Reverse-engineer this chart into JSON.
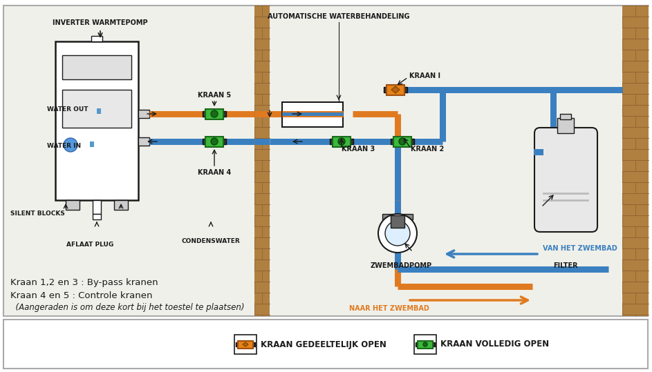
{
  "bg_color": "#f0f0ea",
  "border_color": "#aaaaaa",
  "pipe_orange": "#E07A20",
  "pipe_blue": "#3A80C0",
  "pipe_lw": 6.5,
  "wall_color": "#b08040",
  "wall_dark": "#8B6030",
  "black": "#1a1a1a",
  "labels": {
    "inverter": "INVERTER WARMTEPOMP",
    "water_out": "WATER OUT",
    "water_in": "WATER IN",
    "silent": "SILENT BLOCKS",
    "aflaat": "AFLAAT PLUG",
    "condenswater": "CONDENSWATER",
    "kraan4": "KRAAN 4",
    "kraan5": "KRAAN 5",
    "kraan3": "KRAAN 3",
    "kraan2": "KRAAN 2",
    "kraan1": "KRAAN I",
    "auto_water": "AUTOMATISCHE WATERBEHANDELING",
    "zwembadpomp": "ZWEMBADPOMP",
    "filter": "FILTER",
    "van_zwembad": "VAN HET ZWEMBAD",
    "naar_zwembad": "NAAR HET ZWEMBAD",
    "legend1": "KRAAN GEDEELTELIJK OPEN",
    "legend2": "KRAAN VOLLEDIG OPEN",
    "text1": "Kraan 1,2 en 3 : By-pass kranen",
    "text2": "Kraan 4 en 5 : Controle kranen",
    "text3": "  (Aangeraden is om deze kort bij het toestel te plaatsen)"
  }
}
